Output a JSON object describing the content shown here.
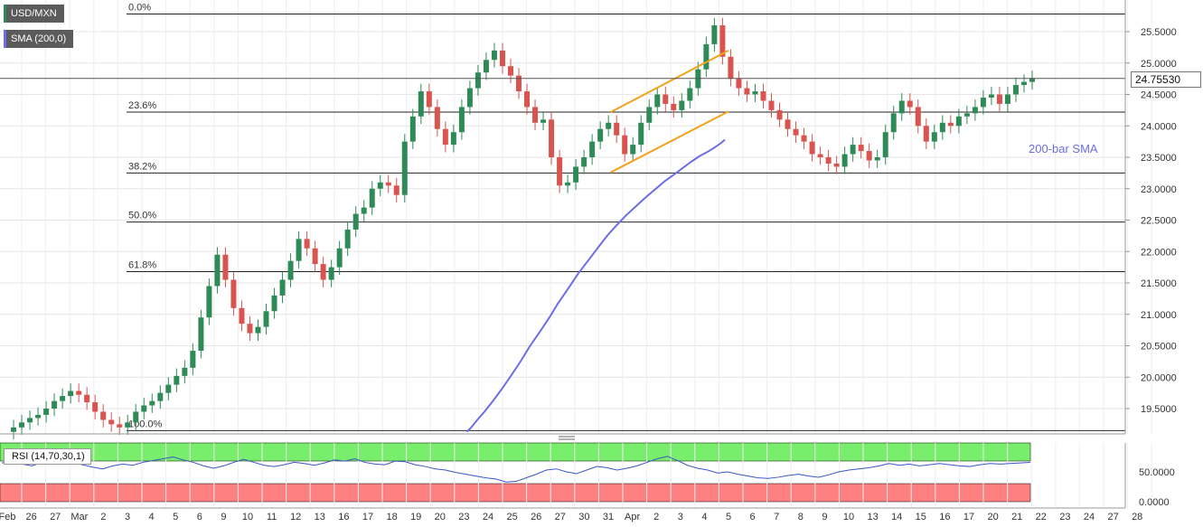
{
  "symbol": "USD/MXN",
  "current_price_label": "24.75530",
  "sma_annotation": "200-bar SMA",
  "colors": {
    "bull": "#2e8b57",
    "bear": "#d9534f",
    "sma": "#6d6ce8",
    "channel": "#f2a21d",
    "rsi": "#3a56c8",
    "overbought": "#78ee6c",
    "oversold": "#ff8080"
  },
  "indicators": [
    {
      "id": "sma",
      "label": "SMA (200,0)",
      "color": "#6d6ce8"
    }
  ],
  "rsi_panel": {
    "label": "RSI (14,70,30,1)",
    "overbought": 70,
    "oversold": 30,
    "tick_labels": [
      "50.0000",
      "0.0000"
    ]
  },
  "chart_data": {
    "type": "candlestick",
    "x_tick_labels": [
      "Feb",
      "26",
      "27",
      "Mar",
      "2",
      "3",
      "4",
      "5",
      "6",
      "9",
      "10",
      "11",
      "12",
      "13",
      "16",
      "17",
      "18",
      "19",
      "20",
      "23",
      "24",
      "25",
      "26",
      "27",
      "30",
      "31",
      "Apr",
      "2",
      "3",
      "4",
      "5",
      "6",
      "7",
      "8",
      "9",
      "10",
      "13",
      "14",
      "15",
      "16",
      "17",
      "20",
      "21",
      "22",
      "23",
      "24",
      "27",
      "28"
    ],
    "y_tick_labels": [
      "25.5000",
      "25.0000",
      "24.5000",
      "24.0000",
      "23.5000",
      "23.0000",
      "22.5000",
      "22.0000",
      "21.5000",
      "21.0000",
      "20.5000",
      "20.0000",
      "19.5000"
    ],
    "ylim": [
      19.1,
      25.85
    ],
    "fibonacci_levels": [
      {
        "label": "0.0%",
        "value": 25.78
      },
      {
        "label": "23.6%",
        "value": 24.22
      },
      {
        "label": "38.2%",
        "value": 23.25
      },
      {
        "label": "50.0%",
        "value": 22.47
      },
      {
        "label": "61.8%",
        "value": 21.68
      },
      {
        "label": "100.0%",
        "value": 19.15
      }
    ],
    "price_line": 24.7553,
    "close_series": [
      19.13,
      19.2,
      19.28,
      19.35,
      19.4,
      19.5,
      19.62,
      19.7,
      19.78,
      19.72,
      19.6,
      19.45,
      19.32,
      19.25,
      19.2,
      19.28,
      19.45,
      19.55,
      19.62,
      19.75,
      19.88,
      20.02,
      20.15,
      20.42,
      20.95,
      21.45,
      21.95,
      21.55,
      21.1,
      20.85,
      20.7,
      20.8,
      21.05,
      21.3,
      21.55,
      21.85,
      22.2,
      22.05,
      21.8,
      21.55,
      21.75,
      22.05,
      22.35,
      22.6,
      22.7,
      23.0,
      23.1,
      23.05,
      22.9,
      23.75,
      24.15,
      24.55,
      24.3,
      23.95,
      23.7,
      23.9,
      24.3,
      24.6,
      24.85,
      25.05,
      25.2,
      24.95,
      24.8,
      24.55,
      24.3,
      24.05,
      24.1,
      23.5,
      23.05,
      23.1,
      23.35,
      23.5,
      23.75,
      23.95,
      24.05,
      23.85,
      23.55,
      23.7,
      24.05,
      24.3,
      24.5,
      24.35,
      24.25,
      24.4,
      24.6,
      24.9,
      25.3,
      25.6,
      25.1,
      24.75,
      24.6,
      24.5,
      24.55,
      24.4,
      24.25,
      24.1,
      23.95,
      23.85,
      23.75,
      23.55,
      23.5,
      23.4,
      23.35,
      23.55,
      23.7,
      23.6,
      23.45,
      23.5,
      23.9,
      24.2,
      24.4,
      24.3,
      24.0,
      23.75,
      23.9,
      24.05,
      24.0,
      24.15,
      24.2,
      24.3,
      24.45,
      24.5,
      24.35,
      24.5,
      24.65,
      24.7,
      24.76
    ],
    "sma_200": [
      [
        19.12,
        19.13
      ],
      [
        19.3,
        19.2
      ],
      [
        19.55,
        19.32
      ],
      [
        19.85,
        19.45
      ],
      [
        20.2,
        19.62
      ],
      [
        20.55,
        19.8
      ],
      [
        20.95,
        20.02
      ],
      [
        21.35,
        20.25
      ],
      [
        21.75,
        20.5
      ],
      [
        22.15,
        20.72
      ],
      [
        22.55,
        20.95
      ],
      [
        22.9,
        21.17
      ],
      [
        23.35,
        21.42
      ],
      [
        23.75,
        21.65
      ],
      [
        24.15,
        21.85
      ],
      [
        24.55,
        22.05
      ],
      [
        24.95,
        22.25
      ],
      [
        25.35,
        22.42
      ],
      [
        25.75,
        22.58
      ],
      [
        26.15,
        22.72
      ],
      [
        26.55,
        22.86
      ],
      [
        26.95,
        22.99
      ],
      [
        27.35,
        23.12
      ],
      [
        27.75,
        23.23
      ],
      [
        28.1,
        23.33
      ],
      [
        28.45,
        23.43
      ],
      [
        28.8,
        23.52
      ],
      [
        29.1,
        23.58
      ],
      [
        29.4,
        23.65
      ],
      [
        29.7,
        23.73
      ],
      [
        29.85,
        23.78
      ]
    ],
    "channel_upper": [
      [
        25.1,
        24.22
      ],
      [
        30.0,
        25.2
      ]
    ],
    "channel_lower": [
      [
        25.1,
        23.26
      ],
      [
        30.0,
        24.23
      ]
    ],
    "rsi_series": [
      65,
      68,
      63,
      60,
      66,
      64,
      69,
      66,
      62,
      58,
      55,
      60,
      63,
      61,
      66,
      69,
      72,
      75,
      70,
      66,
      60,
      56,
      60,
      66,
      71,
      66,
      61,
      59,
      62,
      66,
      64,
      61,
      65,
      70,
      68,
      72,
      66,
      63,
      62,
      68,
      67,
      62,
      59,
      55,
      53,
      49,
      46,
      43,
      40,
      38,
      33,
      34,
      40,
      46,
      53,
      55,
      50,
      47,
      53,
      59,
      57,
      53,
      56,
      60,
      66,
      72,
      76,
      69,
      61,
      56,
      53,
      48,
      50,
      46,
      43,
      40,
      39,
      41,
      44,
      46,
      43,
      41,
      45,
      50,
      53,
      55,
      57,
      60,
      64,
      61,
      63,
      60,
      62,
      64,
      62,
      60,
      59,
      62,
      64,
      63,
      64,
      65,
      66
    ]
  }
}
